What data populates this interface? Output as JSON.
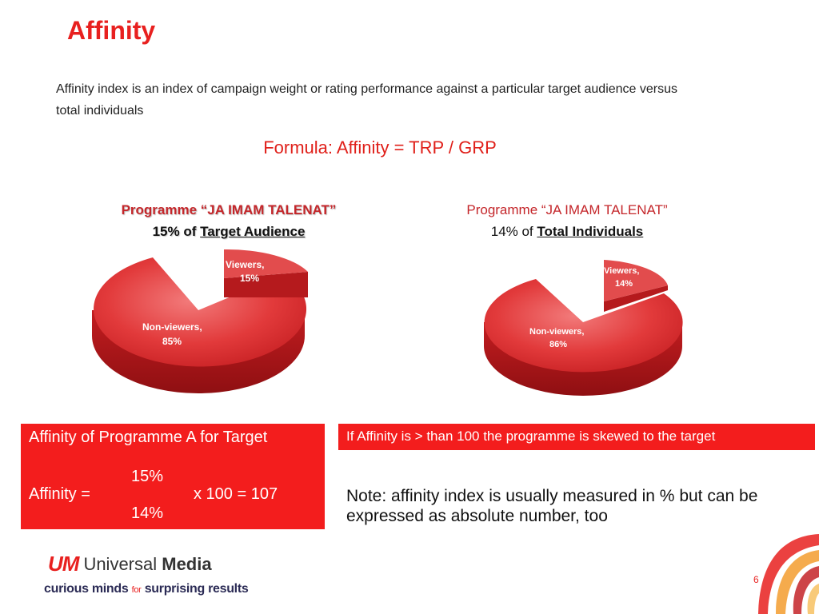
{
  "slide": {
    "title": "Affinity",
    "intro": "Affinity index is an index of campaign weight or rating performance against a particular target audience versus total individuals",
    "formula": "Formula: Affinity = TRP / GRP",
    "page_number": "6"
  },
  "pies": {
    "left": {
      "programme": "Programme “JA IMAM TALENAT”",
      "share_prefix": "15% of ",
      "share_target": "Target Audience",
      "slice_label": "Viewers,",
      "slice_pct": "15%",
      "rest_label": "Non-viewers,",
      "rest_pct": "85%",
      "viewers_share": 15
    },
    "right": {
      "programme": "Programme “JA IMAM TALENAT”",
      "share_prefix": "14% of ",
      "share_target": "Total Individuals",
      "slice_label": "Viewers,",
      "slice_pct": "14%",
      "rest_label": "Non-viewers,",
      "rest_pct": "86%",
      "viewers_share": 14
    }
  },
  "calc": {
    "header": "Affinity of Programme A for Target",
    "numerator": "15%",
    "label": "Affinity =",
    "result": "x 100 = 107",
    "denominator": "14%"
  },
  "skew_note": "If Affinity is > than 100 the programme is skewed to the target",
  "note": "Note: affinity index is usually measured in % but can be expressed as absolute number, too",
  "footer": {
    "logo_mark": "UM",
    "brand_regular": "Universal ",
    "brand_bold": "Media",
    "tagline_a": "curious minds ",
    "tagline_for": "for",
    "tagline_b": " surprising results"
  },
  "colors": {
    "accent": "#e8201f",
    "box_red": "#f31d1d",
    "pie_red": "#e8383a"
  }
}
